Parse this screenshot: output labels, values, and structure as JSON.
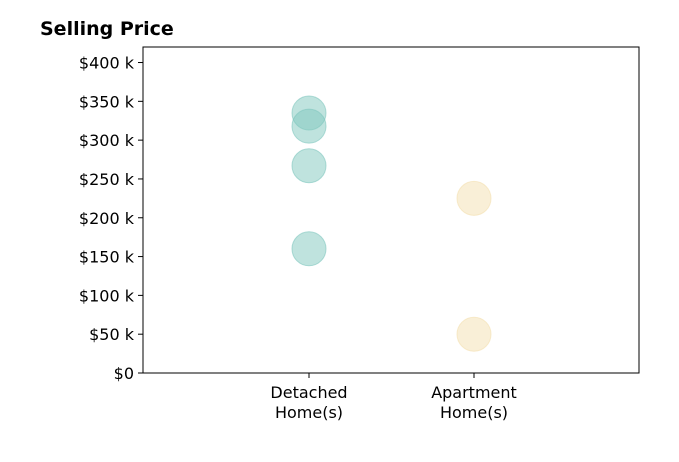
{
  "chart_data": {
    "type": "scatter",
    "title": "Selling Price",
    "xlabel": "",
    "ylabel": "",
    "categories": [
      [
        "Detached",
        "Home(s)"
      ],
      [
        "Apartment",
        "Home(s)"
      ]
    ],
    "ylim": [
      0,
      420000
    ],
    "yticks": [
      0,
      50000,
      100000,
      150000,
      200000,
      250000,
      300000,
      350000,
      400000
    ],
    "ytick_labels": [
      "$0",
      "$50 k",
      "$100 k",
      "$150 k",
      "$200 k",
      "$250 k",
      "$300 k",
      "$350 k",
      "$400 k"
    ],
    "grid": false,
    "legend": "none",
    "series": [
      {
        "category_index": 0,
        "color": "#7fc7be",
        "values": [
          335000,
          318000,
          267000,
          160000
        ]
      },
      {
        "category_index": 1,
        "color": "#f3dfaf",
        "values": [
          225000,
          50000
        ]
      }
    ]
  }
}
